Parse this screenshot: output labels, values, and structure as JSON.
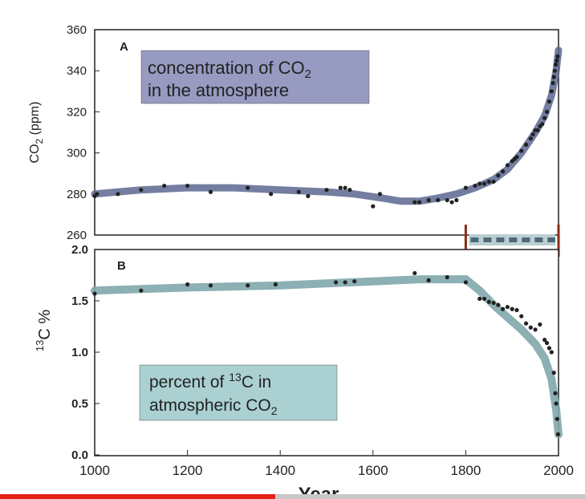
{
  "video": {
    "progress": 0.47
  },
  "colors": {
    "curve": "#5a6790",
    "curve_b": "#7fa7ab",
    "label_a_bg": "#8c8fba",
    "label_b_bg": "#a5cdd0",
    "points": "#222222",
    "axis": "#222222",
    "marker_red": "#8b2b15",
    "youtube_red": "#e62117"
  },
  "chart_data": [
    {
      "id": "A",
      "type": "scatter",
      "panel_letter": "A",
      "annotation": {
        "line1_prefix": "concentration of CO",
        "line1_sub": "2",
        "line2": "in the atmosphere"
      },
      "ylabel_prefix": "CO",
      "ylabel_sub": "2",
      "ylabel_suffix": " (ppm)",
      "xlim": [
        1000,
        2000
      ],
      "ylim": [
        260,
        360
      ],
      "yticks": [
        260,
        280,
        300,
        320,
        340,
        360
      ],
      "fit_curve": {
        "x": [
          1000,
          1100,
          1200,
          1300,
          1400,
          1500,
          1560,
          1620,
          1660,
          1700,
          1740,
          1780,
          1820,
          1860,
          1890,
          1920,
          1950,
          1970,
          1985,
          1995,
          2000
        ],
        "y": [
          280,
          282,
          283,
          283,
          282,
          281,
          280,
          278,
          276.5,
          276.5,
          278,
          280,
          283,
          287,
          292,
          300,
          310,
          318,
          328,
          340,
          350
        ]
      },
      "points": {
        "x": [
          1000,
          1005,
          1050,
          1100,
          1150,
          1200,
          1250,
          1330,
          1380,
          1440,
          1460,
          1500,
          1530,
          1540,
          1550,
          1600,
          1615,
          1690,
          1700,
          1720,
          1740,
          1760,
          1770,
          1780,
          1800,
          1820,
          1830,
          1840,
          1850,
          1860,
          1870,
          1880,
          1890,
          1900,
          1905,
          1910,
          1920,
          1930,
          1940,
          1945,
          1950,
          1955,
          1960,
          1965,
          1970,
          1975,
          1980,
          1985,
          1988,
          1990,
          1992,
          1994,
          1996,
          1998
        ],
        "y": [
          279,
          280,
          280,
          282,
          284,
          284,
          281,
          283,
          280,
          281,
          279,
          282,
          283,
          283,
          282,
          274,
          280,
          276,
          276,
          277,
          277,
          277,
          276,
          277,
          283,
          284,
          285,
          285,
          286,
          286,
          289,
          291,
          294,
          296,
          297,
          298,
          301,
          304,
          307,
          309,
          311,
          311,
          313,
          314,
          317,
          320,
          325,
          330,
          334,
          337,
          340,
          343,
          345,
          347
        ]
      },
      "range_marker": {
        "x_start": 1800,
        "x_end": 2000
      }
    },
    {
      "id": "B",
      "type": "scatter",
      "panel_letter": "B",
      "annotation": {
        "line1_prefix": "percent of ",
        "line1_sup": "13",
        "line1_suffix": "C in",
        "line2_prefix": "atmospheric CO",
        "line2_sub": "2"
      },
      "ylabel_sup": "13",
      "ylabel_main": "C %",
      "xlabel": "Year",
      "xlim": [
        1000,
        2000
      ],
      "ylim": [
        0.0,
        2.0
      ],
      "xticks": [
        1000,
        1200,
        1400,
        1600,
        1800,
        2000
      ],
      "yticks": [
        0.0,
        0.5,
        1.0,
        1.5,
        2.0
      ],
      "ytick_labels": [
        "0.0",
        "0.5",
        "1.0",
        "1.5",
        "2.0"
      ],
      "fit_curve": {
        "x": [
          1000,
          1200,
          1400,
          1600,
          1700,
          1800,
          1830,
          1860,
          1890,
          1920,
          1950,
          1970,
          1985,
          1995,
          2000
        ],
        "y": [
          1.6,
          1.63,
          1.65,
          1.69,
          1.71,
          1.71,
          1.6,
          1.46,
          1.34,
          1.22,
          1.08,
          0.94,
          0.74,
          0.44,
          0.2
        ]
      },
      "points": {
        "x": [
          1000,
          1100,
          1200,
          1250,
          1330,
          1390,
          1520,
          1540,
          1560,
          1690,
          1720,
          1760,
          1800,
          1830,
          1840,
          1850,
          1860,
          1870,
          1880,
          1890,
          1900,
          1910,
          1920,
          1930,
          1940,
          1950,
          1960,
          1970,
          1975,
          1980,
          1985,
          1990,
          1993,
          1995,
          1997,
          1999
        ],
        "y": [
          1.57,
          1.6,
          1.66,
          1.65,
          1.65,
          1.66,
          1.68,
          1.68,
          1.69,
          1.77,
          1.7,
          1.73,
          1.68,
          1.52,
          1.52,
          1.49,
          1.48,
          1.46,
          1.42,
          1.44,
          1.42,
          1.41,
          1.35,
          1.28,
          1.24,
          1.22,
          1.27,
          1.12,
          1.09,
          1.04,
          1.0,
          0.8,
          0.6,
          0.5,
          0.35,
          0.2
        ]
      }
    }
  ]
}
